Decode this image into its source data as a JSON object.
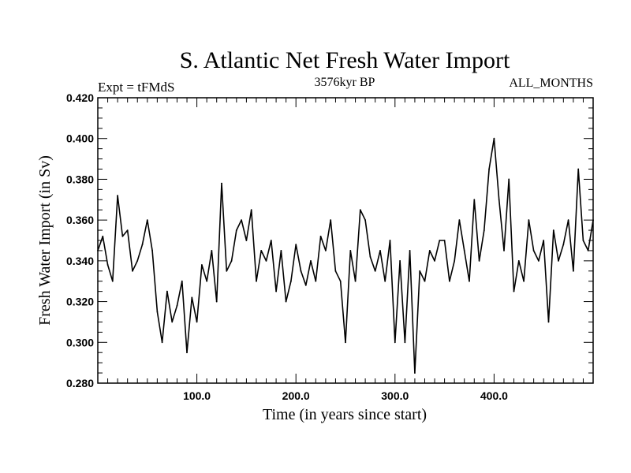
{
  "chart_data": {
    "type": "line",
    "title": "S. Atlantic Net Fresh Water Import",
    "subtitle_left": "Expt = tFMdS",
    "subtitle_center": "3576kyr BP",
    "subtitle_right": "ALL_MONTHS",
    "xlabel": "Time (in years since start)",
    "ylabel": "Fresh Water Import (in Sv)",
    "xlim": [
      0,
      500
    ],
    "ylim": [
      0.28,
      0.42
    ],
    "x_ticks": [
      {
        "value": 100,
        "label": "100.0"
      },
      {
        "value": 200,
        "label": "200.0"
      },
      {
        "value": 300,
        "label": "300.0"
      },
      {
        "value": 400,
        "label": "400.0"
      }
    ],
    "y_ticks": [
      {
        "value": 0.28,
        "label": "0.280"
      },
      {
        "value": 0.3,
        "label": "0.300"
      },
      {
        "value": 0.32,
        "label": "0.320"
      },
      {
        "value": 0.34,
        "label": "0.340"
      },
      {
        "value": 0.36,
        "label": "0.360"
      },
      {
        "value": 0.38,
        "label": "0.380"
      },
      {
        "value": 0.4,
        "label": "0.400"
      },
      {
        "value": 0.42,
        "label": "0.420"
      }
    ],
    "series": [
      {
        "name": "Fresh Water Import",
        "color": "#000000",
        "x": [
          0,
          5,
          10,
          15,
          20,
          25,
          30,
          35,
          40,
          45,
          50,
          55,
          60,
          65,
          70,
          75,
          80,
          85,
          90,
          95,
          100,
          105,
          110,
          115,
          120,
          125,
          130,
          135,
          140,
          145,
          150,
          155,
          160,
          165,
          170,
          175,
          180,
          185,
          190,
          195,
          200,
          205,
          210,
          215,
          220,
          225,
          230,
          235,
          240,
          245,
          250,
          255,
          260,
          265,
          270,
          275,
          280,
          285,
          290,
          295,
          300,
          305,
          310,
          315,
          320,
          325,
          330,
          335,
          340,
          345,
          350,
          355,
          360,
          365,
          370,
          375,
          380,
          385,
          390,
          395,
          400,
          405,
          410,
          415,
          420,
          425,
          430,
          435,
          440,
          445,
          450,
          455,
          460,
          465,
          470,
          475,
          480,
          485,
          490,
          495,
          500
        ],
        "values": [
          0.345,
          0.352,
          0.338,
          0.33,
          0.372,
          0.352,
          0.355,
          0.335,
          0.34,
          0.348,
          0.36,
          0.345,
          0.315,
          0.3,
          0.325,
          0.31,
          0.318,
          0.33,
          0.295,
          0.322,
          0.31,
          0.338,
          0.33,
          0.345,
          0.32,
          0.378,
          0.335,
          0.34,
          0.355,
          0.36,
          0.35,
          0.365,
          0.33,
          0.345,
          0.34,
          0.35,
          0.325,
          0.345,
          0.32,
          0.33,
          0.348,
          0.335,
          0.328,
          0.34,
          0.33,
          0.352,
          0.345,
          0.36,
          0.335,
          0.33,
          0.3,
          0.345,
          0.33,
          0.365,
          0.36,
          0.342,
          0.335,
          0.345,
          0.33,
          0.35,
          0.3,
          0.34,
          0.3,
          0.345,
          0.285,
          0.335,
          0.33,
          0.345,
          0.34,
          0.35,
          0.35,
          0.33,
          0.34,
          0.36,
          0.345,
          0.33,
          0.37,
          0.34,
          0.355,
          0.385,
          0.4,
          0.37,
          0.345,
          0.38,
          0.325,
          0.34,
          0.33,
          0.36,
          0.345,
          0.34,
          0.35,
          0.31,
          0.355,
          0.34,
          0.348,
          0.36,
          0.335,
          0.385,
          0.35,
          0.345,
          0.36
        ]
      }
    ]
  }
}
